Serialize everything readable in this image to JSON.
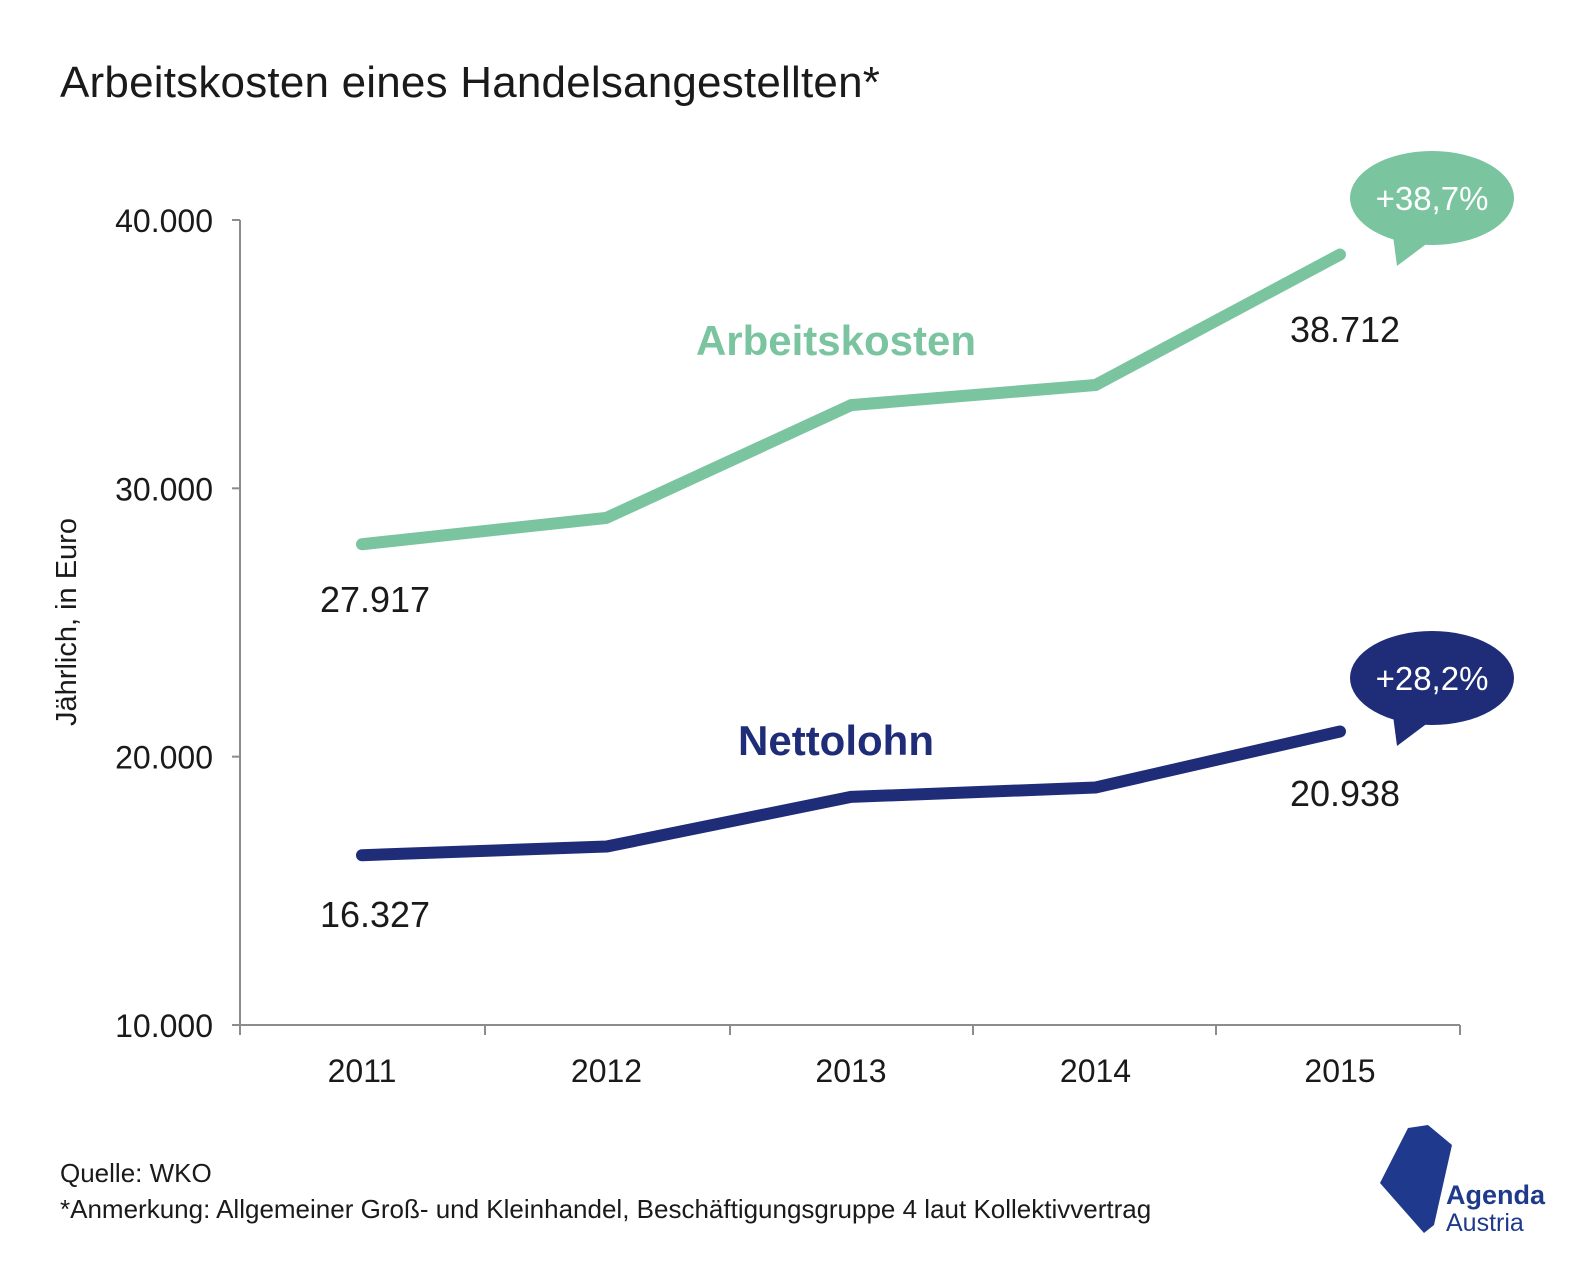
{
  "title": "Arbeitskosten eines Handelsangestellten*",
  "source": "Quelle: WKO",
  "note": "*Anmerkung: Allgemeiner Groß- und Kleinhandel, Beschäftigungsgruppe 4 laut Kollektivvertrag",
  "logo": {
    "line1": "Agenda",
    "line2": "Austria"
  },
  "chart_data": {
    "type": "line",
    "ylabel": "Jährlich, in Euro",
    "xlabel": "",
    "ylim": [
      10000,
      40000
    ],
    "yticks": [
      10000,
      20000,
      30000,
      40000
    ],
    "ytick_labels": [
      "10.000",
      "20.000",
      "30.000",
      "40.000"
    ],
    "categories": [
      "2011",
      "2012",
      "2013",
      "2014",
      "2015"
    ],
    "grid": false,
    "series": [
      {
        "name": "Arbeitskosten",
        "color": "#7ac4a0",
        "values": [
          27917,
          28900,
          33100,
          33850,
          38712
        ],
        "first_label": "27.917",
        "last_label": "38.712",
        "change_label": "+38,7%"
      },
      {
        "name": "Nettolohn",
        "color": "#1f2d78",
        "values": [
          16327,
          16650,
          18500,
          18850,
          20938
        ],
        "first_label": "16.327",
        "last_label": "20.938",
        "change_label": "+28,2%"
      }
    ]
  }
}
